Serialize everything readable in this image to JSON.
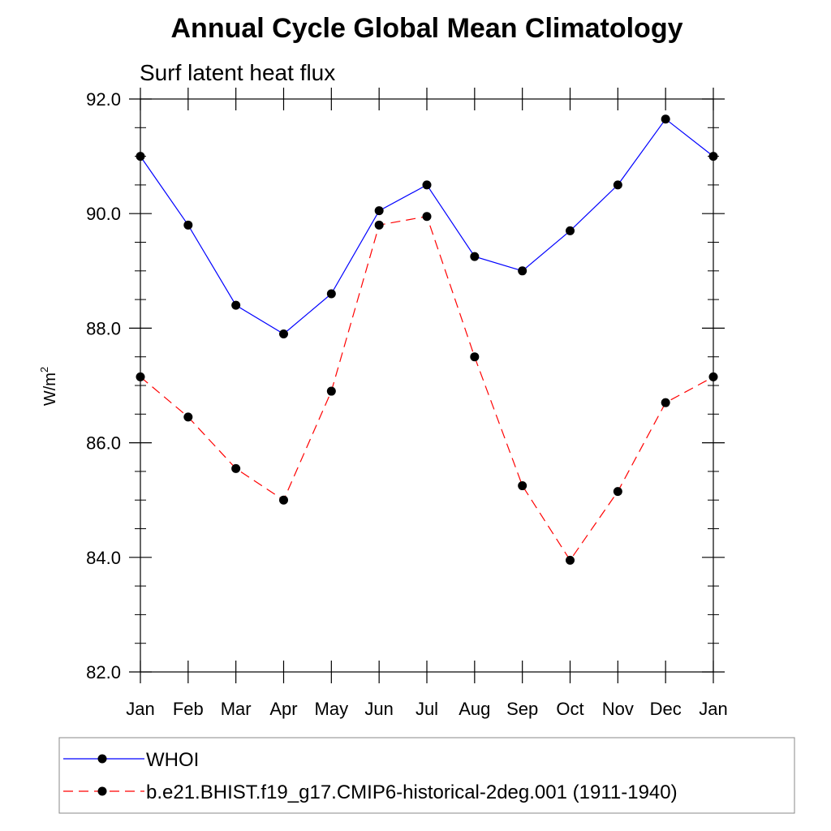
{
  "chart_data": {
    "type": "line",
    "title": "Annual Cycle Global Mean Climatology",
    "subtitle": "Surf latent heat flux",
    "xlabel": "",
    "ylabel_base": "W/m",
    "ylabel_sup": "2",
    "categories": [
      "Jan",
      "Feb",
      "Mar",
      "Apr",
      "May",
      "Jun",
      "Jul",
      "Aug",
      "Sep",
      "Oct",
      "Nov",
      "Dec",
      "Jan"
    ],
    "ylim": [
      82.0,
      92.0
    ],
    "yticks": [
      "82.0",
      "84.0",
      "86.0",
      "88.0",
      "90.0",
      "92.0"
    ],
    "grid": false,
    "legend_placement": "bottom",
    "series": [
      {
        "name": "WHOI",
        "color": "#0000ff",
        "dash": "solid",
        "marker": "dot",
        "values": [
          91.0,
          89.8,
          88.4,
          87.9,
          88.6,
          90.05,
          90.5,
          89.25,
          89.0,
          89.7,
          90.5,
          91.65,
          91.0
        ]
      },
      {
        "name": "b.e21.BHIST.f19_g17.CMIP6-historical-2deg.001 (1911-1940)",
        "color": "#ff0000",
        "dash": "dashed",
        "marker": "dot",
        "values": [
          87.15,
          86.45,
          85.55,
          85.0,
          86.9,
          89.8,
          89.95,
          87.5,
          85.25,
          83.95,
          85.15,
          86.7,
          87.15
        ]
      }
    ]
  }
}
